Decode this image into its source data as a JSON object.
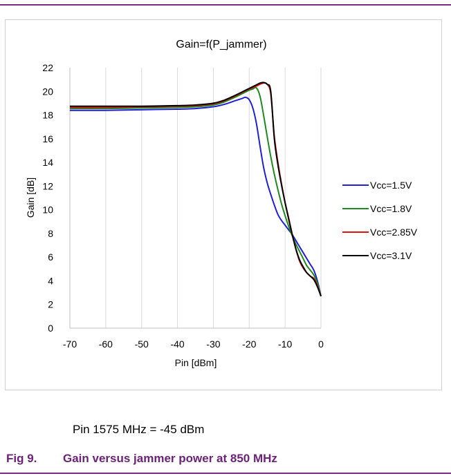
{
  "chart_data": {
    "type": "line",
    "title": "Gain=f(P_jammer)",
    "xlabel": "Pin [dBm]",
    "ylabel": "Gain [dB]",
    "xlim": [
      -70,
      0
    ],
    "ylim": [
      0,
      22
    ],
    "x_ticks": [
      -70,
      -60,
      -50,
      -40,
      -30,
      -20,
      -10,
      0
    ],
    "y_ticks": [
      0,
      2,
      4,
      6,
      8,
      10,
      12,
      14,
      16,
      18,
      20,
      22
    ],
    "grid": "vertical",
    "legend_position": "right",
    "series": [
      {
        "name": "Vcc=1.5V",
        "color": "#1f1fd6",
        "x": [
          -70,
          -60,
          -50,
          -40,
          -35,
          -30,
          -27,
          -24,
          -22,
          -21,
          -20,
          -19,
          -18,
          -17,
          -16,
          -15,
          -14,
          -13,
          -12,
          -11,
          -10,
          -9,
          -8,
          -7,
          -6,
          -5,
          -4,
          -3,
          -2,
          -1,
          0
        ],
        "y": [
          18.4,
          18.4,
          18.45,
          18.5,
          18.55,
          18.7,
          18.9,
          19.2,
          19.4,
          19.5,
          19.3,
          18.6,
          17.3,
          15.4,
          13.6,
          12.3,
          11.3,
          10.4,
          9.6,
          9.1,
          8.7,
          8.3,
          7.9,
          7.4,
          6.9,
          6.4,
          5.9,
          5.4,
          4.9,
          4.0,
          2.7
        ]
      },
      {
        "name": "Vcc=1.8V",
        "color": "#1e8a1e",
        "x": [
          -70,
          -60,
          -50,
          -40,
          -35,
          -30,
          -27,
          -24,
          -22,
          -20,
          -19,
          -18,
          -17,
          -16,
          -15,
          -14,
          -13,
          -12,
          -11,
          -10,
          -9,
          -8,
          -7,
          -6,
          -5,
          -4,
          -3,
          -2,
          -1,
          0
        ],
        "y": [
          18.55,
          18.55,
          18.6,
          18.65,
          18.7,
          18.85,
          19.1,
          19.5,
          19.8,
          20.1,
          20.2,
          20.3,
          19.6,
          18.0,
          16.2,
          14.5,
          13.0,
          11.7,
          10.5,
          9.5,
          8.6,
          7.8,
          7.1,
          6.5,
          5.9,
          5.3,
          4.9,
          4.5,
          3.8,
          2.7
        ]
      },
      {
        "name": "Vcc=2.85V",
        "color": "#e01010",
        "x": [
          -70,
          -60,
          -50,
          -40,
          -35,
          -30,
          -27,
          -24,
          -22,
          -20,
          -18,
          -17,
          -16,
          -15,
          -14,
          -13,
          -12,
          -11,
          -10,
          -9,
          -8,
          -7,
          -6,
          -5,
          -4,
          -3,
          -2,
          -1,
          0
        ],
        "y": [
          18.65,
          18.65,
          18.7,
          18.75,
          18.8,
          18.95,
          19.2,
          19.6,
          19.9,
          20.2,
          20.45,
          20.6,
          20.7,
          20.6,
          19.8,
          16.2,
          14.0,
          12.2,
          10.6,
          9.3,
          7.9,
          6.7,
          5.7,
          5.1,
          4.7,
          4.4,
          4.2,
          3.6,
          2.7
        ]
      },
      {
        "name": "Vcc=3.1V",
        "color": "#000000",
        "x": [
          -70,
          -60,
          -50,
          -40,
          -35,
          -30,
          -27,
          -24,
          -22,
          -20,
          -18,
          -17,
          -16,
          -15,
          -14,
          -13,
          -12,
          -11,
          -10,
          -9,
          -8,
          -7,
          -6,
          -5,
          -4,
          -3,
          -2,
          -1,
          0
        ],
        "y": [
          18.75,
          18.75,
          18.75,
          18.8,
          18.85,
          19.0,
          19.25,
          19.65,
          19.95,
          20.25,
          20.55,
          20.7,
          20.75,
          20.6,
          20.0,
          16.0,
          13.8,
          12.1,
          10.6,
          9.2,
          7.9,
          6.7,
          5.8,
          5.2,
          4.7,
          4.4,
          4.1,
          3.5,
          2.7
        ]
      }
    ]
  },
  "note": "Pin 1575 MHz = -45 dBm",
  "caption": {
    "number": "Fig 9.",
    "text": "Gain versus jammer power at 850 MHz"
  }
}
